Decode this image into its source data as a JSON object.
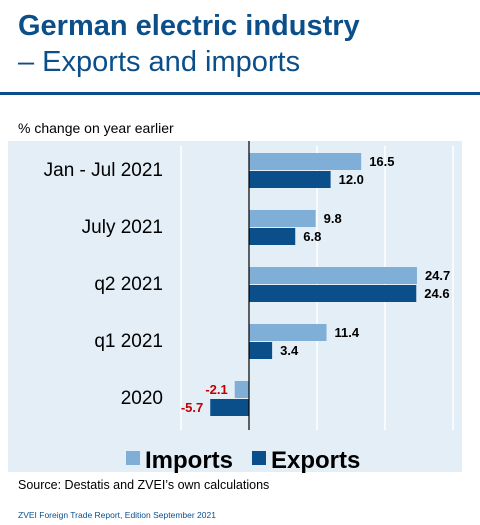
{
  "header": {
    "title": "German electric industry",
    "subtitle": "– Exports and imports"
  },
  "unit_label": "% change on year earlier",
  "source": "Source: Destatis and ZVEI’s own calculations",
  "footer": "ZVEI Foreign Trade Report, Edition September 2021",
  "colors": {
    "imports": "#7fafd6",
    "exports": "#0b4f8a",
    "negative_label": "#c00000",
    "plot_bg": "#e3eef7",
    "title": "#0b4f8a"
  },
  "chart_data": {
    "type": "bar",
    "orientation": "horizontal",
    "categories": [
      "Jan - Jul 2021",
      "July 2021",
      "q2 2021",
      "q1 2021",
      "2020"
    ],
    "series": [
      {
        "name": "Imports",
        "values": [
          16.5,
          9.8,
          24.7,
          11.4,
          -2.1
        ]
      },
      {
        "name": "Exports",
        "values": [
          12.0,
          6.8,
          24.6,
          3.4,
          -5.7
        ]
      }
    ],
    "value_labels": {
      "Imports": [
        "16.5",
        "9.8",
        "24.7",
        "11.4",
        "-2.1"
      ],
      "Exports": [
        "12.0",
        "6.8",
        "24.6",
        "3.4",
        "-5.7"
      ]
    },
    "xlim": [
      -10,
      30
    ],
    "grid": true,
    "legend": "bottom"
  }
}
